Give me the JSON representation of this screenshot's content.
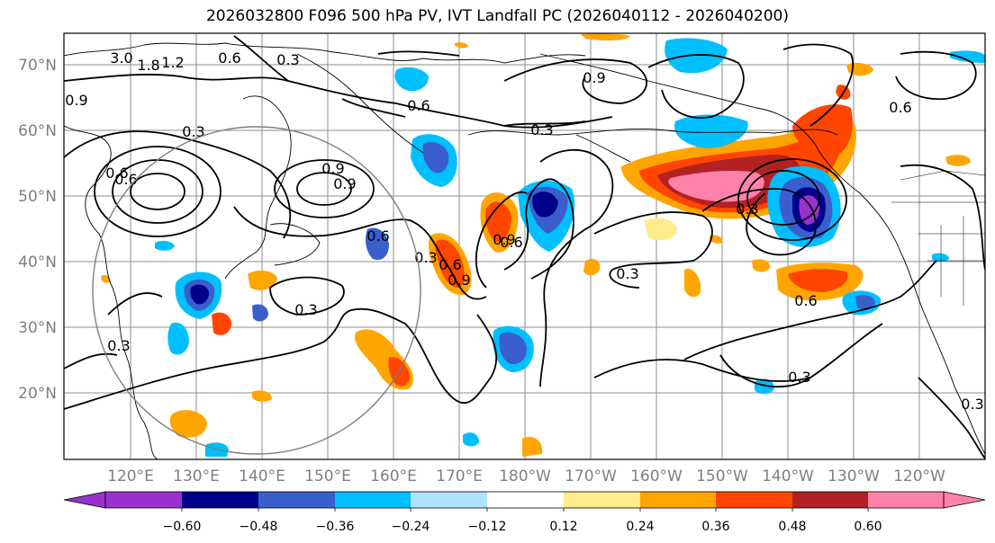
{
  "title": "2026032800 F096 500 hPa PV, IVT Landfall PC (2026040112 - 2026040200)",
  "map": {
    "lon_ticks": [
      "120°E",
      "130°E",
      "140°E",
      "150°E",
      "160°E",
      "170°E",
      "180°W",
      "170°W",
      "160°W",
      "150°W",
      "140°W",
      "130°W",
      "120°W"
    ],
    "lat_ticks": [
      "70°N",
      "60°N",
      "50°N",
      "40°N",
      "30°N",
      "20°N"
    ],
    "tick_color": "#7f7f7f",
    "contour_labels": [
      "3.0",
      "1.8",
      "1.2",
      "0.6",
      "0.3",
      "0.9",
      "0.6",
      "0.9",
      "0.3",
      "0.6",
      "0.9",
      "0.9",
      "0.3",
      "0.3",
      "0.6",
      "0.3",
      "0.9",
      "0.6",
      "0.3",
      "0.3",
      "0.6",
      "0.3",
      "0.6",
      "0.6",
      "0.3",
      "0.3",
      "0.9",
      "0.6"
    ]
  },
  "colorbar": {
    "labels": [
      "−0.60",
      "−0.48",
      "−0.36",
      "−0.24",
      "−0.12",
      "0.12",
      "0.24",
      "0.36",
      "0.48",
      "0.60"
    ],
    "colors": [
      "#9932cc",
      "#00008b",
      "#3a5fcd",
      "#00bfff",
      "#b0e2ff",
      "#ffffff",
      "#ffec8b",
      "#ffa500",
      "#ff4500",
      "#b22222",
      "#ff82ab"
    ]
  }
}
